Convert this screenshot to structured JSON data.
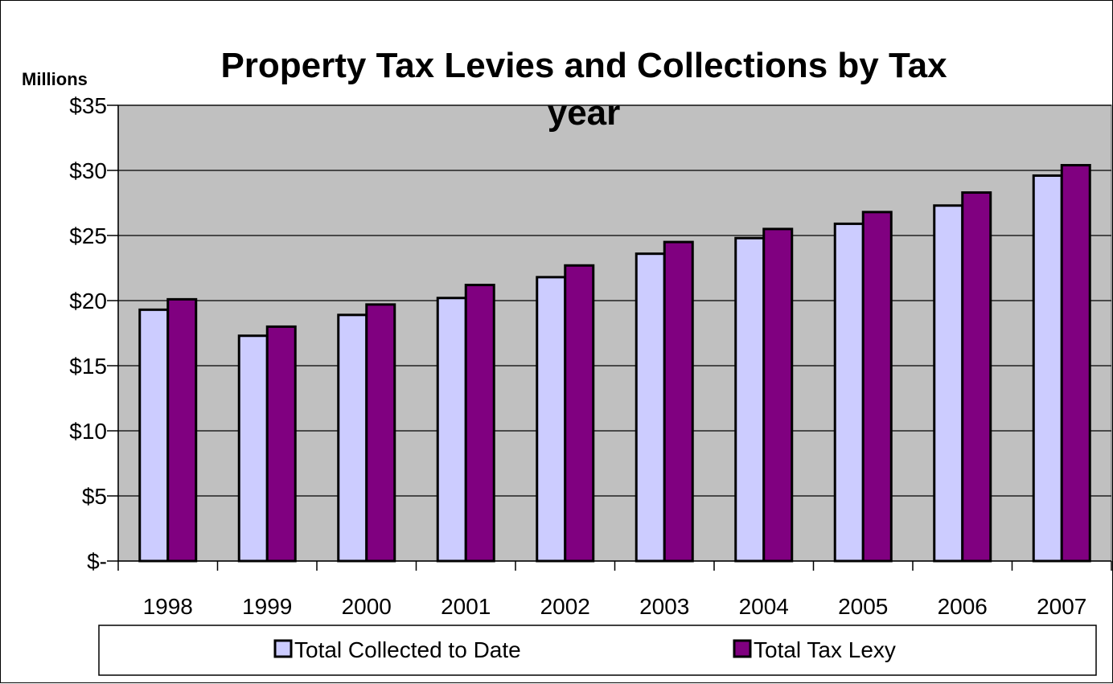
{
  "chart_data": {
    "type": "bar",
    "title_line1": "Property Tax Levies and Collections by Tax",
    "title_line2": "year",
    "ylabel": "Millions",
    "categories": [
      "1998",
      "1999",
      "2000",
      "2001",
      "2002",
      "2003",
      "2004",
      "2005",
      "2006",
      "2007"
    ],
    "series": [
      {
        "name": "Total Collected to Date",
        "color": "#ccccff",
        "values": [
          19.3,
          17.3,
          18.9,
          20.2,
          21.8,
          23.6,
          24.8,
          25.9,
          27.3,
          29.6
        ]
      },
      {
        "name": "Total Tax Lexy",
        "color": "#800080",
        "values": [
          20.1,
          18.0,
          19.7,
          21.2,
          22.7,
          24.5,
          25.5,
          26.8,
          28.3,
          30.4
        ]
      }
    ],
    "ylim": [
      0,
      35
    ],
    "yticks": [
      {
        "value": 0,
        "label": "$-"
      },
      {
        "value": 5,
        "label": "$5"
      },
      {
        "value": 10,
        "label": "$10"
      },
      {
        "value": 15,
        "label": "$15"
      },
      {
        "value": 20,
        "label": "$20"
      },
      {
        "value": 25,
        "label": "$25"
      },
      {
        "value": 30,
        "label": "$30"
      },
      {
        "value": 35,
        "label": "$35"
      }
    ],
    "plot_background": "#c0c0c0",
    "grid": true,
    "legend_position": "bottom"
  }
}
